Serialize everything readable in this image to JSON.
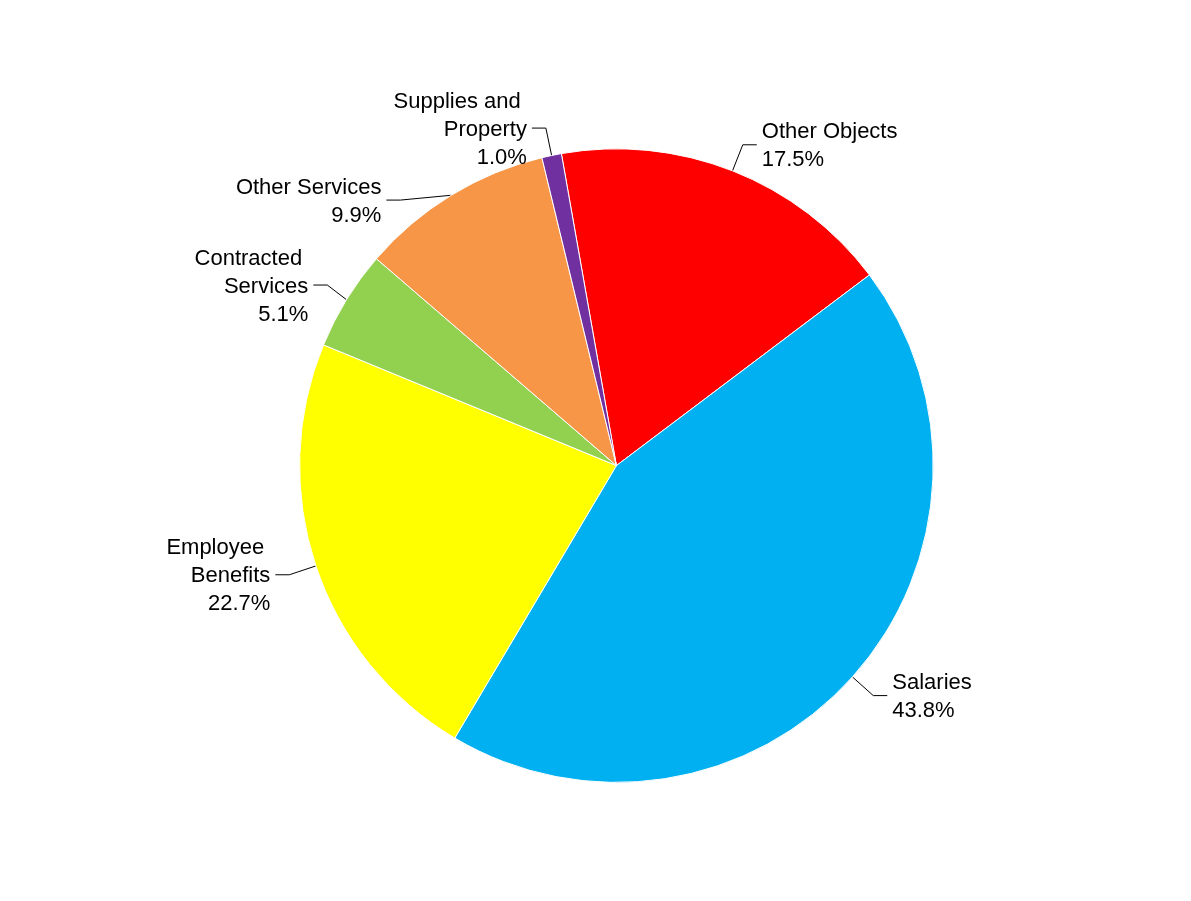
{
  "chart_data": {
    "type": "pie",
    "categories": [
      "Other Objects",
      "Salaries",
      "Employee Benefits",
      "Contracted Services",
      "Other Services",
      "Supplies and Property"
    ],
    "values": [
      17.5,
      43.8,
      22.7,
      5.1,
      9.9,
      1.0
    ],
    "value_labels": [
      "17.5%",
      "43.8%",
      "22.7%",
      "5.1%",
      "9.9%",
      "1.0%"
    ],
    "colors": [
      "#ff0000",
      "#00b0f0",
      "#ffff00",
      "#92d050",
      "#f79646",
      "#7030a0"
    ]
  }
}
